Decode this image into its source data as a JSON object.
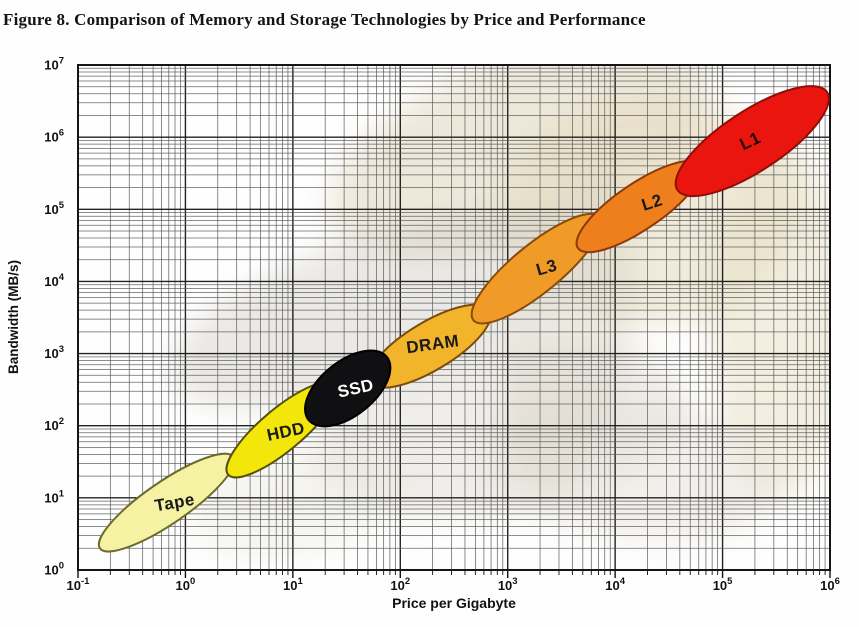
{
  "title": "Figure 8. Comparison of Memory and Storage Technologies by Price and Performance",
  "chart_data": {
    "type": "scatter",
    "subtype": "log-log ellipse range chart",
    "title": "Figure 8. Comparison of Memory and Storage Technologies by Price and Performance",
    "xlabel": "Price per Gigabyte",
    "ylabel": "Bandwidth (MB/s)",
    "x_scale": "log",
    "y_scale": "log",
    "x_range_log": [
      -1,
      6
    ],
    "y_range_log": [
      0,
      7
    ],
    "x_ticks": [
      "10^-1",
      "10^0",
      "10^1",
      "10^2",
      "10^3",
      "10^4",
      "10^5",
      "10^6"
    ],
    "y_ticks": [
      "10^0",
      "10^1",
      "10^2",
      "10^3",
      "10^4",
      "10^5",
      "10^6",
      "10^7"
    ],
    "grid": true,
    "legend": "none",
    "series": [
      {
        "name": "Tape",
        "fill": "#F5F2A3",
        "stroke": "#6E6A2E",
        "label_color": "#1a1a1a",
        "price_range": [
          0.16,
          2.8
        ],
        "bandwidth_range": [
          2,
          37
        ],
        "thickness_px": 42,
        "label_dx": 8,
        "label_dy": 0,
        "label_angle": -10
      },
      {
        "name": "HDD",
        "fill": "#F2E60A",
        "stroke": "#55510C",
        "label_color": "#1a1a1a",
        "price_range": [
          2.5,
          25
        ],
        "bandwidth_range": [
          21,
          370
        ],
        "thickness_px": 42,
        "label_dx": 4,
        "label_dy": 2,
        "label_angle": -12
      },
      {
        "name": "DRAM",
        "fill": "#F2B42B",
        "stroke": "#7A4C0E",
        "label_color": "#1a1a1a",
        "price_range": [
          52,
          680
        ],
        "bandwidth_range": [
          400,
          4000
        ],
        "thickness_px": 48,
        "label_dx": 3,
        "label_dy": -2,
        "label_angle": -8
      },
      {
        "name": "SSD",
        "fill": "#101013",
        "stroke": "#000000",
        "label_color": "#ffffff",
        "price_range": [
          14,
          75
        ],
        "bandwidth_range": [
          120,
          900
        ],
        "thickness_px": 54,
        "label_dx": 8,
        "label_dy": 0,
        "label_angle": -12
      },
      {
        "name": "L3",
        "fill": "#F09A28",
        "stroke": "#8A4A0A",
        "label_color": "#1a1a1a",
        "price_range": [
          480,
          7200
        ],
        "bandwidth_range": [
          2900,
          78000
        ],
        "thickness_px": 48,
        "label_dx": 10,
        "label_dy": -1,
        "label_angle": -16
      },
      {
        "name": "L2",
        "fill": "#EF7F1D",
        "stroke": "#8A3A08",
        "label_color": "#1a1a1a",
        "price_range": [
          4500,
          62000
        ],
        "bandwidth_range": [
          29000,
          410000
        ],
        "thickness_px": 46,
        "label_dx": 13,
        "label_dy": -4,
        "label_angle": -18
      },
      {
        "name": "L1",
        "fill": "#EA150E",
        "stroke": "#8E0F0A",
        "label_color": "#250505",
        "price_range": [
          38000,
          940000
        ],
        "bandwidth_range": [
          185000,
          4200000
        ],
        "thickness_px": 60,
        "label_dx": -2,
        "label_dy": 0,
        "label_angle": -25
      }
    ]
  }
}
